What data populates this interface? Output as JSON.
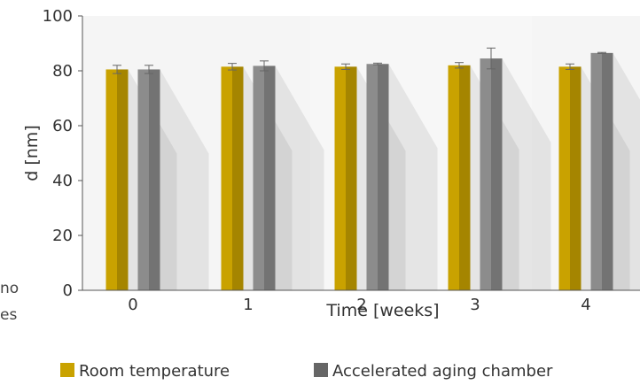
{
  "side_text": [
    "no",
    "es"
  ],
  "chart_data": {
    "type": "bar",
    "title": "",
    "xlabel": "Time [weeks]",
    "ylabel": "d [nm]",
    "ylim": [
      0,
      100
    ],
    "yticks": [
      "0",
      "20",
      "40",
      "60",
      "80",
      "100"
    ],
    "categories": [
      "0",
      "1",
      "2",
      "3",
      "4"
    ],
    "grid": false,
    "legend_position": "bottom",
    "series": [
      {
        "name": "Room temperature",
        "color": "#c9a200",
        "values": [
          80.5,
          81.5,
          81.5,
          82.0,
          81.5
        ],
        "errors": [
          1.5,
          1.2,
          1.0,
          1.0,
          1.0
        ]
      },
      {
        "name": "Accelerated aging chamber",
        "color": "#8c8c8c",
        "values": [
          80.5,
          81.8,
          82.5,
          84.5,
          86.5
        ],
        "errors": [
          1.5,
          1.8,
          0.3,
          3.8,
          0.2
        ]
      }
    ]
  }
}
